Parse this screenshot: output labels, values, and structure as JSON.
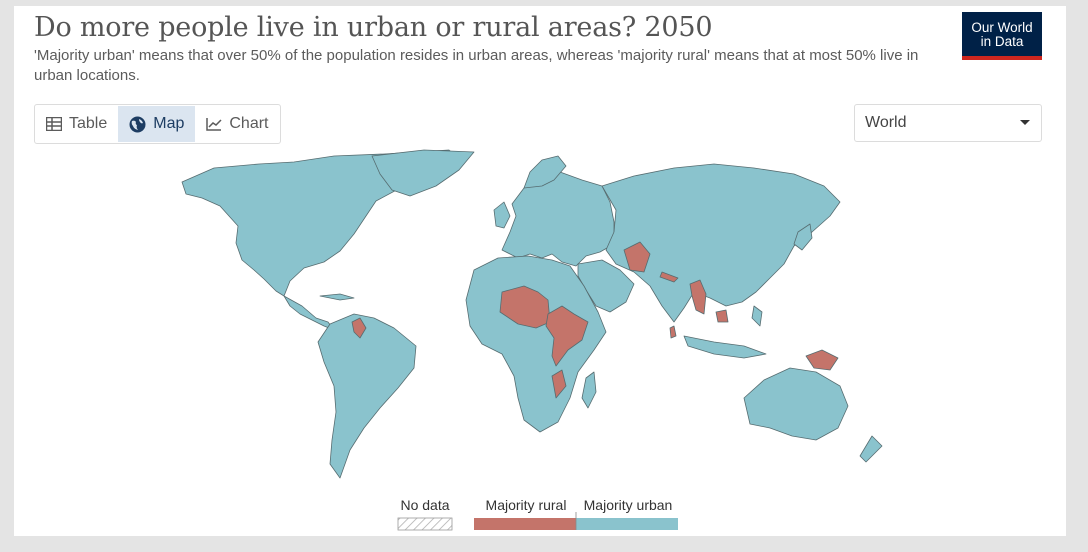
{
  "header": {
    "title": "Do more people live in urban or rural areas? 2050",
    "subtitle": "'Majority urban' means that over 50% of the population resides in urban areas, whereas 'majority rural' means that at most 50% live in urban locations."
  },
  "logo": {
    "line1": "Our World",
    "line2": "in Data"
  },
  "tabs": [
    {
      "label": "Table",
      "icon": "table-icon"
    },
    {
      "label": "Map",
      "icon": "globe-icon",
      "active": true
    },
    {
      "label": "Chart",
      "icon": "line-chart-icon"
    }
  ],
  "entity_selector": {
    "value": "World"
  },
  "legend": {
    "no_data": "No data",
    "rural": "Majority rural",
    "urban": "Majority urban"
  },
  "colors": {
    "rural": "#c4746a",
    "urban": "#8ac3cd",
    "outline": "#566c70",
    "logo_bg": "#002147",
    "logo_accent": "#ce261e"
  }
}
